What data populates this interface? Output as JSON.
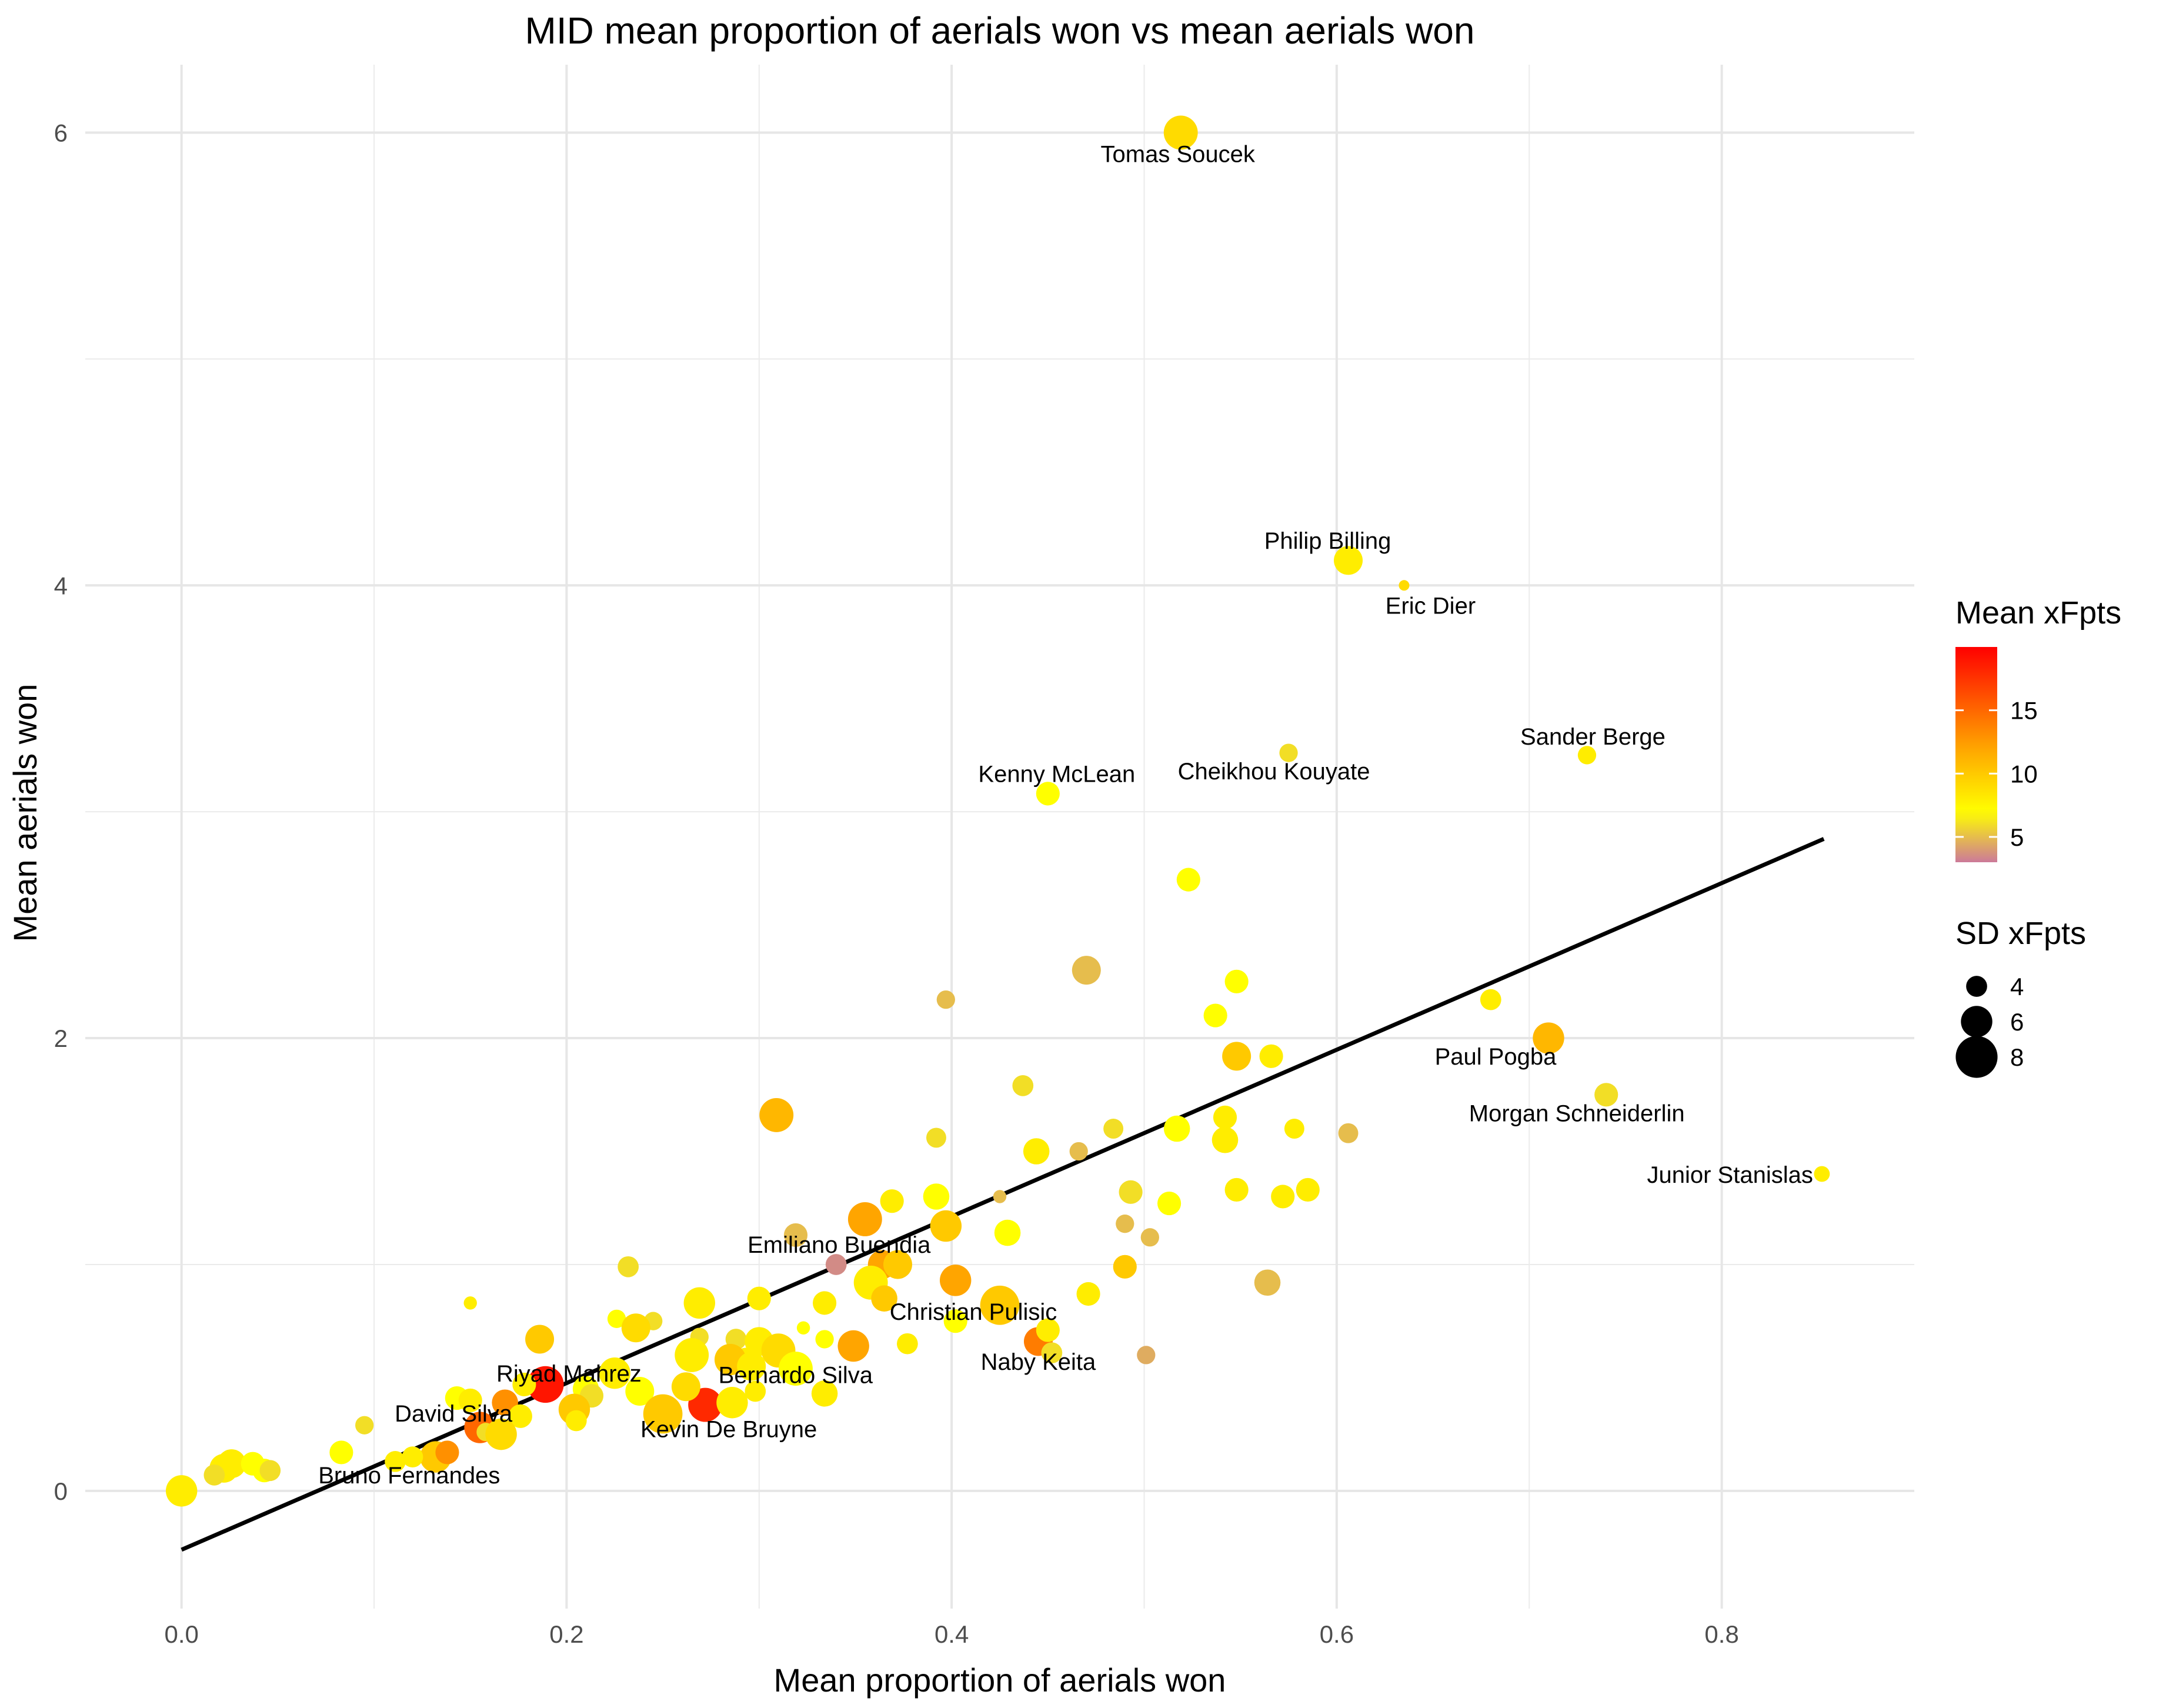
{
  "chart_data": {
    "type": "scatter",
    "title": "MID mean proportion of aerials won vs mean aerials won",
    "xlabel": "Mean proportion of aerials won",
    "ylabel": "Mean aerials won",
    "xlim": [
      -0.05,
      0.9
    ],
    "ylim": [
      -0.52,
      6.3
    ],
    "x_ticks": [
      0.0,
      0.2,
      0.4,
      0.6,
      0.8
    ],
    "x_tick_labels": [
      "0.0",
      "0.2",
      "0.4",
      "0.6",
      "0.8"
    ],
    "y_ticks": [
      0,
      2,
      4,
      6
    ],
    "y_tick_labels": [
      "0",
      "2",
      "4",
      "6"
    ],
    "grid": true,
    "legend_position": "right",
    "color_legend": {
      "title": "Mean xFpts",
      "range": [
        3,
        20
      ],
      "ticks": [
        5,
        10,
        15
      ],
      "colors": [
        "#cc7a99",
        "#ffff00",
        "#ffa500",
        "#ff0000"
      ]
    },
    "size_legend": {
      "title": "SD xFpts",
      "range": [
        2,
        9
      ],
      "values": [
        4,
        6,
        8
      ]
    },
    "trend_line": {
      "x": [
        0.0,
        0.853
      ],
      "y": [
        -0.26,
        2.88
      ],
      "color": "#000000"
    },
    "points": [
      {
        "x": 0.519,
        "y": 6.0,
        "c": 9,
        "s": 6.5,
        "label": "Tomas Soucek"
      },
      {
        "x": 0.606,
        "y": 4.11,
        "c": 8,
        "s": 5.5,
        "label": "Philip Billing"
      },
      {
        "x": 0.635,
        "y": 4.0,
        "c": 9,
        "s": 2.0,
        "label": "Eric Dier"
      },
      {
        "x": 0.73,
        "y": 3.25,
        "c": 8,
        "s": 3.5,
        "label": "Sander Berge"
      },
      {
        "x": 0.45,
        "y": 3.08,
        "c": 7,
        "s": 4.5,
        "label": "Kenny McLean"
      },
      {
        "x": 0.575,
        "y": 3.26,
        "c": 6,
        "s": 3.5,
        "label": "Cheikhou Kouyate"
      },
      {
        "x": 0.71,
        "y": 2.0,
        "c": 11,
        "s": 6.0,
        "label": "Paul Pogba"
      },
      {
        "x": 0.74,
        "y": 1.75,
        "c": 6,
        "s": 4.5,
        "label": "Morgan Schneiderlin"
      },
      {
        "x": 0.852,
        "y": 1.4,
        "c": 8,
        "s": 3.0,
        "label": "Junior Stanislas"
      },
      {
        "x": 0.34,
        "y": 1.0,
        "c": 3.5,
        "s": 4.0,
        "label": "Emiliano Buendia"
      },
      {
        "x": 0.425,
        "y": 0.82,
        "c": 10,
        "s": 7.5,
        "label": "Christian Pulisic"
      },
      {
        "x": 0.445,
        "y": 0.66,
        "c": 14,
        "s": 5.5,
        "label": "Naby Keita"
      },
      {
        "x": 0.293,
        "y": 0.58,
        "c": 8,
        "s": 4.5,
        "label": "Bernardo Silva"
      },
      {
        "x": 0.189,
        "y": 0.47,
        "c": 19,
        "s": 7.0,
        "label": "Riyad Mahrez"
      },
      {
        "x": 0.272,
        "y": 0.38,
        "c": 18,
        "s": 6.5,
        "label": "Kevin De Bruyne"
      },
      {
        "x": 0.155,
        "y": 0.28,
        "c": 15,
        "s": 6.0,
        "label": "David Silva"
      },
      {
        "x": 0.132,
        "y": 0.15,
        "c": 10,
        "s": 6.0,
        "label": "Bruno Fernandes"
      },
      {
        "x": 0.523,
        "y": 2.7,
        "c": 7,
        "s": 4.5
      },
      {
        "x": 0.47,
        "y": 2.3,
        "c": 5,
        "s": 5.5
      },
      {
        "x": 0.397,
        "y": 2.17,
        "c": 5,
        "s": 3.5
      },
      {
        "x": 0.548,
        "y": 2.25,
        "c": 7,
        "s": 4.5
      },
      {
        "x": 0.537,
        "y": 2.1,
        "c": 7,
        "s": 4.5
      },
      {
        "x": 0.68,
        "y": 2.17,
        "c": 8,
        "s": 4.0
      },
      {
        "x": 0.548,
        "y": 1.92,
        "c": 10,
        "s": 5.5
      },
      {
        "x": 0.566,
        "y": 1.92,
        "c": 8,
        "s": 4.5
      },
      {
        "x": 0.437,
        "y": 1.79,
        "c": 6,
        "s": 4.0
      },
      {
        "x": 0.309,
        "y": 1.66,
        "c": 11,
        "s": 6.5
      },
      {
        "x": 0.392,
        "y": 1.56,
        "c": 6,
        "s": 3.8
      },
      {
        "x": 0.484,
        "y": 1.6,
        "c": 6,
        "s": 3.8
      },
      {
        "x": 0.542,
        "y": 1.65,
        "c": 8,
        "s": 4.5
      },
      {
        "x": 0.517,
        "y": 1.6,
        "c": 7,
        "s": 5.0
      },
      {
        "x": 0.578,
        "y": 1.6,
        "c": 8,
        "s": 3.8
      },
      {
        "x": 0.606,
        "y": 1.58,
        "c": 5,
        "s": 3.8
      },
      {
        "x": 0.444,
        "y": 1.5,
        "c": 8,
        "s": 5.0
      },
      {
        "x": 0.466,
        "y": 1.5,
        "c": 5,
        "s": 3.5
      },
      {
        "x": 0.542,
        "y": 1.55,
        "c": 8,
        "s": 5.0
      },
      {
        "x": 0.392,
        "y": 1.3,
        "c": 7,
        "s": 5.0
      },
      {
        "x": 0.369,
        "y": 1.28,
        "c": 8,
        "s": 4.5
      },
      {
        "x": 0.493,
        "y": 1.32,
        "c": 6,
        "s": 4.5
      },
      {
        "x": 0.513,
        "y": 1.27,
        "c": 7,
        "s": 4.5
      },
      {
        "x": 0.548,
        "y": 1.33,
        "c": 8,
        "s": 4.5
      },
      {
        "x": 0.572,
        "y": 1.3,
        "c": 8,
        "s": 4.5
      },
      {
        "x": 0.585,
        "y": 1.33,
        "c": 8,
        "s": 4.5
      },
      {
        "x": 0.425,
        "y": 1.3,
        "c": 5,
        "s": 2.5
      },
      {
        "x": 0.355,
        "y": 1.2,
        "c": 12,
        "s": 6.5
      },
      {
        "x": 0.319,
        "y": 1.13,
        "c": 5,
        "s": 4.5
      },
      {
        "x": 0.397,
        "y": 1.17,
        "c": 10,
        "s": 6.0
      },
      {
        "x": 0.429,
        "y": 1.14,
        "c": 7,
        "s": 5.0
      },
      {
        "x": 0.49,
        "y": 1.18,
        "c": 5,
        "s": 3.5
      },
      {
        "x": 0.503,
        "y": 1.12,
        "c": 5,
        "s": 3.5
      },
      {
        "x": 0.232,
        "y": 0.99,
        "c": 6,
        "s": 4.0
      },
      {
        "x": 0.364,
        "y": 1.0,
        "c": 12,
        "s": 5.5
      },
      {
        "x": 0.372,
        "y": 1.0,
        "c": 10,
        "s": 5.5
      },
      {
        "x": 0.49,
        "y": 0.99,
        "c": 10,
        "s": 4.5
      },
      {
        "x": 0.358,
        "y": 0.92,
        "c": 8,
        "s": 6.5
      },
      {
        "x": 0.402,
        "y": 0.93,
        "c": 12,
        "s": 6.0
      },
      {
        "x": 0.564,
        "y": 0.92,
        "c": 5,
        "s": 5.0
      },
      {
        "x": 0.15,
        "y": 0.83,
        "c": 8,
        "s": 2.5
      },
      {
        "x": 0.269,
        "y": 0.83,
        "c": 8,
        "s": 6.0
      },
      {
        "x": 0.3,
        "y": 0.85,
        "c": 8,
        "s": 4.5
      },
      {
        "x": 0.334,
        "y": 0.83,
        "c": 8,
        "s": 4.5
      },
      {
        "x": 0.365,
        "y": 0.85,
        "c": 10,
        "s": 5.0
      },
      {
        "x": 0.471,
        "y": 0.87,
        "c": 8,
        "s": 4.5
      },
      {
        "x": 0.226,
        "y": 0.76,
        "c": 7,
        "s": 3.5
      },
      {
        "x": 0.245,
        "y": 0.75,
        "c": 6,
        "s": 3.5
      },
      {
        "x": 0.236,
        "y": 0.72,
        "c": 9,
        "s": 5.5
      },
      {
        "x": 0.269,
        "y": 0.68,
        "c": 6,
        "s": 3.5
      },
      {
        "x": 0.288,
        "y": 0.67,
        "c": 6,
        "s": 4.0
      },
      {
        "x": 0.3,
        "y": 0.66,
        "c": 8,
        "s": 5.5
      },
      {
        "x": 0.323,
        "y": 0.72,
        "c": 7,
        "s": 2.5
      },
      {
        "x": 0.334,
        "y": 0.67,
        "c": 7,
        "s": 3.5
      },
      {
        "x": 0.349,
        "y": 0.64,
        "c": 12,
        "s": 6.0
      },
      {
        "x": 0.377,
        "y": 0.65,
        "c": 8,
        "s": 4.0
      },
      {
        "x": 0.402,
        "y": 0.75,
        "c": 7,
        "s": 4.5
      },
      {
        "x": 0.45,
        "y": 0.71,
        "c": 8,
        "s": 4.5
      },
      {
        "x": 0.452,
        "y": 0.61,
        "c": 6,
        "s": 4.0
      },
      {
        "x": 0.501,
        "y": 0.6,
        "c": 4.5,
        "s": 3.5
      },
      {
        "x": 0.186,
        "y": 0.67,
        "c": 10,
        "s": 5.5
      },
      {
        "x": 0.265,
        "y": 0.6,
        "c": 8,
        "s": 6.5
      },
      {
        "x": 0.285,
        "y": 0.58,
        "c": 10,
        "s": 6.0
      },
      {
        "x": 0.31,
        "y": 0.62,
        "c": 9,
        "s": 6.5
      },
      {
        "x": 0.296,
        "y": 0.55,
        "c": 8,
        "s": 5.5
      },
      {
        "x": 0.319,
        "y": 0.54,
        "c": 7,
        "s": 6.5
      },
      {
        "x": 0.225,
        "y": 0.52,
        "c": 8,
        "s": 6.0
      },
      {
        "x": 0.262,
        "y": 0.46,
        "c": 9,
        "s": 5.5
      },
      {
        "x": 0.238,
        "y": 0.44,
        "c": 7,
        "s": 5.5
      },
      {
        "x": 0.298,
        "y": 0.44,
        "c": 8,
        "s": 4.0
      },
      {
        "x": 0.334,
        "y": 0.43,
        "c": 8,
        "s": 5.0
      },
      {
        "x": 0.178,
        "y": 0.47,
        "c": 8,
        "s": 4.5
      },
      {
        "x": 0.21,
        "y": 0.45,
        "c": 7,
        "s": 5.0
      },
      {
        "x": 0.213,
        "y": 0.42,
        "c": 6,
        "s": 4.5
      },
      {
        "x": 0.143,
        "y": 0.41,
        "c": 7,
        "s": 4.5
      },
      {
        "x": 0.15,
        "y": 0.4,
        "c": 8,
        "s": 4.5
      },
      {
        "x": 0.168,
        "y": 0.39,
        "c": 13,
        "s": 5.0
      },
      {
        "x": 0.204,
        "y": 0.36,
        "c": 10,
        "s": 6.0
      },
      {
        "x": 0.286,
        "y": 0.39,
        "c": 8,
        "s": 6.0
      },
      {
        "x": 0.25,
        "y": 0.34,
        "c": 10,
        "s": 7.5
      },
      {
        "x": 0.176,
        "y": 0.33,
        "c": 8,
        "s": 4.5
      },
      {
        "x": 0.205,
        "y": 0.31,
        "c": 8,
        "s": 4.0
      },
      {
        "x": 0.095,
        "y": 0.29,
        "c": 6,
        "s": 3.5
      },
      {
        "x": 0.158,
        "y": 0.26,
        "c": 6,
        "s": 3.5
      },
      {
        "x": 0.166,
        "y": 0.25,
        "c": 9,
        "s": 6.0
      },
      {
        "x": 0.138,
        "y": 0.17,
        "c": 13,
        "s": 4.5
      },
      {
        "x": 0.083,
        "y": 0.17,
        "c": 7,
        "s": 4.5
      },
      {
        "x": 0.12,
        "y": 0.15,
        "c": 8,
        "s": 4.0
      },
      {
        "x": 0.111,
        "y": 0.13,
        "c": 8,
        "s": 4.0
      },
      {
        "x": 0.026,
        "y": 0.12,
        "c": 8,
        "s": 5.5
      },
      {
        "x": 0.037,
        "y": 0.12,
        "c": 7,
        "s": 4.5
      },
      {
        "x": 0.022,
        "y": 0.1,
        "c": 8,
        "s": 5.5
      },
      {
        "x": 0.043,
        "y": 0.09,
        "c": 7,
        "s": 4.5
      },
      {
        "x": 0.046,
        "y": 0.09,
        "c": 6,
        "s": 4.0
      },
      {
        "x": 0.017,
        "y": 0.07,
        "c": 6,
        "s": 4.0
      },
      {
        "x": 0.0,
        "y": 0.0,
        "c": 8,
        "s": 6.0
      }
    ]
  }
}
